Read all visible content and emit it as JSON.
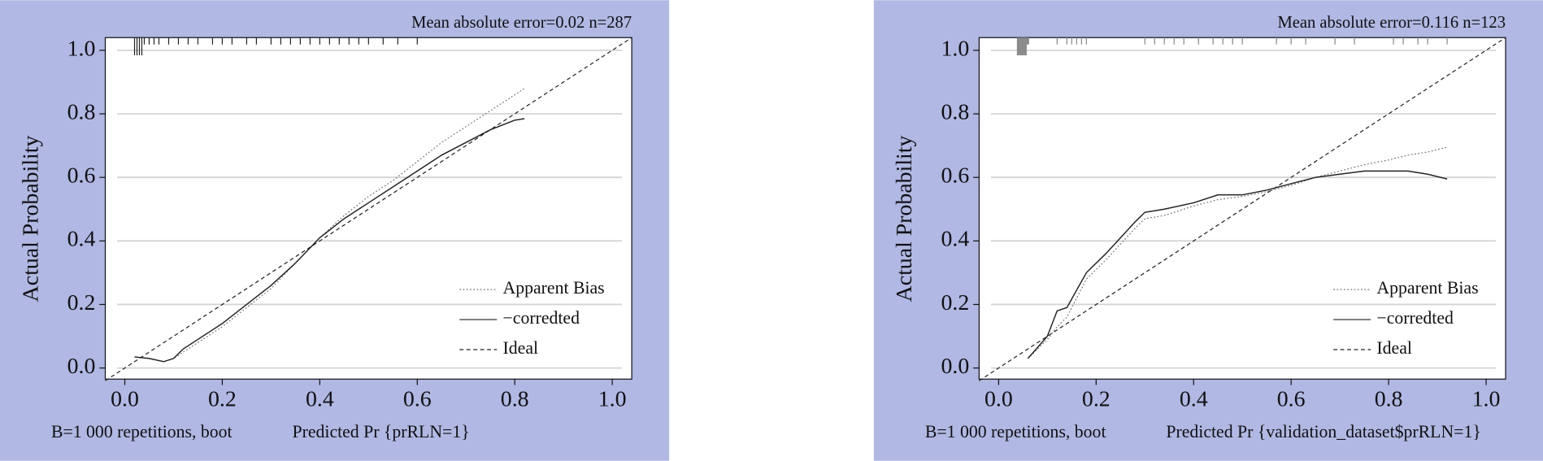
{
  "chart_data": [
    {
      "type": "line",
      "title": "Mean absolute error=0.02 n=287",
      "x_label": "Predicted Pr {prRLN=1}",
      "y_label": "Actual Probability",
      "note": "B=1 000 repetitions, boot",
      "xlim": [
        -0.04,
        1.04
      ],
      "ylim": [
        -0.035,
        1.04
      ],
      "xticks": [
        {
          "value": 0,
          "label": "0.0"
        },
        0.2,
        0.4,
        0.6,
        0.8,
        {
          "value": 1,
          "label": "1.0"
        }
      ],
      "yticks": [
        {
          "value": 0,
          "label": "0.0"
        },
        0.2,
        0.4,
        0.6,
        0.8,
        {
          "value": 1,
          "label": "1.0"
        }
      ],
      "grid": true,
      "legend": "lower right",
      "series": [
        {
          "name": "Apparent Bias",
          "color": "#777777",
          "dash": "dotted",
          "x": [
            0.02,
            0.05,
            0.08,
            0.1,
            0.12,
            0.15,
            0.2,
            0.25,
            0.3,
            0.35,
            0.4,
            0.45,
            0.5,
            0.55,
            0.6,
            0.65,
            0.7,
            0.75,
            0.8,
            0.82
          ],
          "values": [
            0.035,
            0.03,
            0.02,
            0.03,
            0.05,
            0.08,
            0.13,
            0.19,
            0.25,
            0.33,
            0.41,
            0.48,
            0.54,
            0.59,
            0.65,
            0.71,
            0.76,
            0.81,
            0.86,
            0.88
          ]
        },
        {
          "name": "−corredted",
          "color": "#222222",
          "dash": "solid",
          "x": [
            0.02,
            0.05,
            0.08,
            0.1,
            0.12,
            0.15,
            0.2,
            0.25,
            0.3,
            0.35,
            0.4,
            0.45,
            0.5,
            0.55,
            0.6,
            0.65,
            0.7,
            0.75,
            0.8,
            0.82
          ],
          "values": [
            0.035,
            0.03,
            0.02,
            0.03,
            0.06,
            0.09,
            0.14,
            0.2,
            0.26,
            0.33,
            0.41,
            0.47,
            0.52,
            0.57,
            0.62,
            0.67,
            0.71,
            0.75,
            0.78,
            0.785
          ]
        },
        {
          "name": "Ideal",
          "color": "#222222",
          "dash": "dashed",
          "x": [
            -0.04,
            1.04
          ],
          "values": [
            -0.04,
            1.04
          ]
        }
      ],
      "rug": [
        0.02,
        0.025,
        0.03,
        0.035,
        0.04,
        0.05,
        0.06,
        0.07,
        0.09,
        0.11,
        0.13,
        0.15,
        0.18,
        0.2,
        0.22,
        0.25,
        0.27,
        0.3,
        0.32,
        0.34,
        0.36,
        0.38,
        0.4,
        0.42,
        0.44,
        0.46,
        0.48,
        0.5,
        0.53,
        0.56,
        0.6
      ]
    },
    {
      "type": "line",
      "title": "Mean absolute error=0.116 n=123",
      "x_label": "Predicted Pr {validation_dataset$prRLN=1}",
      "y_label": "Actual Probability",
      "note": "B=1 000 repetitions, boot",
      "xlim": [
        -0.04,
        1.04
      ],
      "ylim": [
        -0.035,
        1.04
      ],
      "xticks": [
        {
          "value": 0,
          "label": "0.0"
        },
        0.2,
        0.4,
        0.6,
        0.8,
        {
          "value": 1,
          "label": "1.0"
        }
      ],
      "yticks": [
        {
          "value": 0,
          "label": "0.0"
        },
        0.2,
        0.4,
        0.6,
        0.8,
        {
          "value": 1,
          "label": "1.0"
        }
      ],
      "grid": true,
      "legend": "lower right",
      "series": [
        {
          "name": "Apparent Bias",
          "color": "#777777",
          "dash": "dotted",
          "x": [
            0.06,
            0.1,
            0.12,
            0.14,
            0.18,
            0.22,
            0.28,
            0.3,
            0.34,
            0.4,
            0.45,
            0.5,
            0.55,
            0.6,
            0.65,
            0.7,
            0.75,
            0.8,
            0.84,
            0.88,
            0.92
          ],
          "values": [
            0.03,
            0.09,
            0.13,
            0.16,
            0.28,
            0.34,
            0.44,
            0.47,
            0.48,
            0.51,
            0.53,
            0.54,
            0.555,
            0.575,
            0.6,
            0.62,
            0.64,
            0.655,
            0.67,
            0.68,
            0.695
          ]
        },
        {
          "name": "−corredted",
          "color": "#222222",
          "dash": "solid",
          "x": [
            0.06,
            0.1,
            0.12,
            0.14,
            0.18,
            0.22,
            0.28,
            0.3,
            0.34,
            0.4,
            0.45,
            0.5,
            0.55,
            0.6,
            0.65,
            0.7,
            0.75,
            0.8,
            0.84,
            0.88,
            0.92
          ],
          "values": [
            0.03,
            0.1,
            0.18,
            0.19,
            0.3,
            0.36,
            0.46,
            0.49,
            0.5,
            0.52,
            0.545,
            0.545,
            0.56,
            0.58,
            0.6,
            0.61,
            0.62,
            0.62,
            0.62,
            0.61,
            0.595
          ]
        },
        {
          "name": "Ideal",
          "color": "#222222",
          "dash": "dashed",
          "x": [
            -0.04,
            1.04
          ],
          "values": [
            -0.04,
            1.04
          ]
        }
      ],
      "rug": [
        0.04,
        0.045,
        0.05,
        0.055,
        0.06,
        0.12,
        0.14,
        0.15,
        0.16,
        0.17,
        0.18,
        0.3,
        0.32,
        0.34,
        0.36,
        0.38,
        0.41,
        0.44,
        0.46,
        0.48,
        0.5,
        0.57,
        0.6,
        0.63,
        0.69,
        0.73,
        0.81,
        0.83,
        0.86,
        0.88,
        0.92
      ]
    }
  ]
}
